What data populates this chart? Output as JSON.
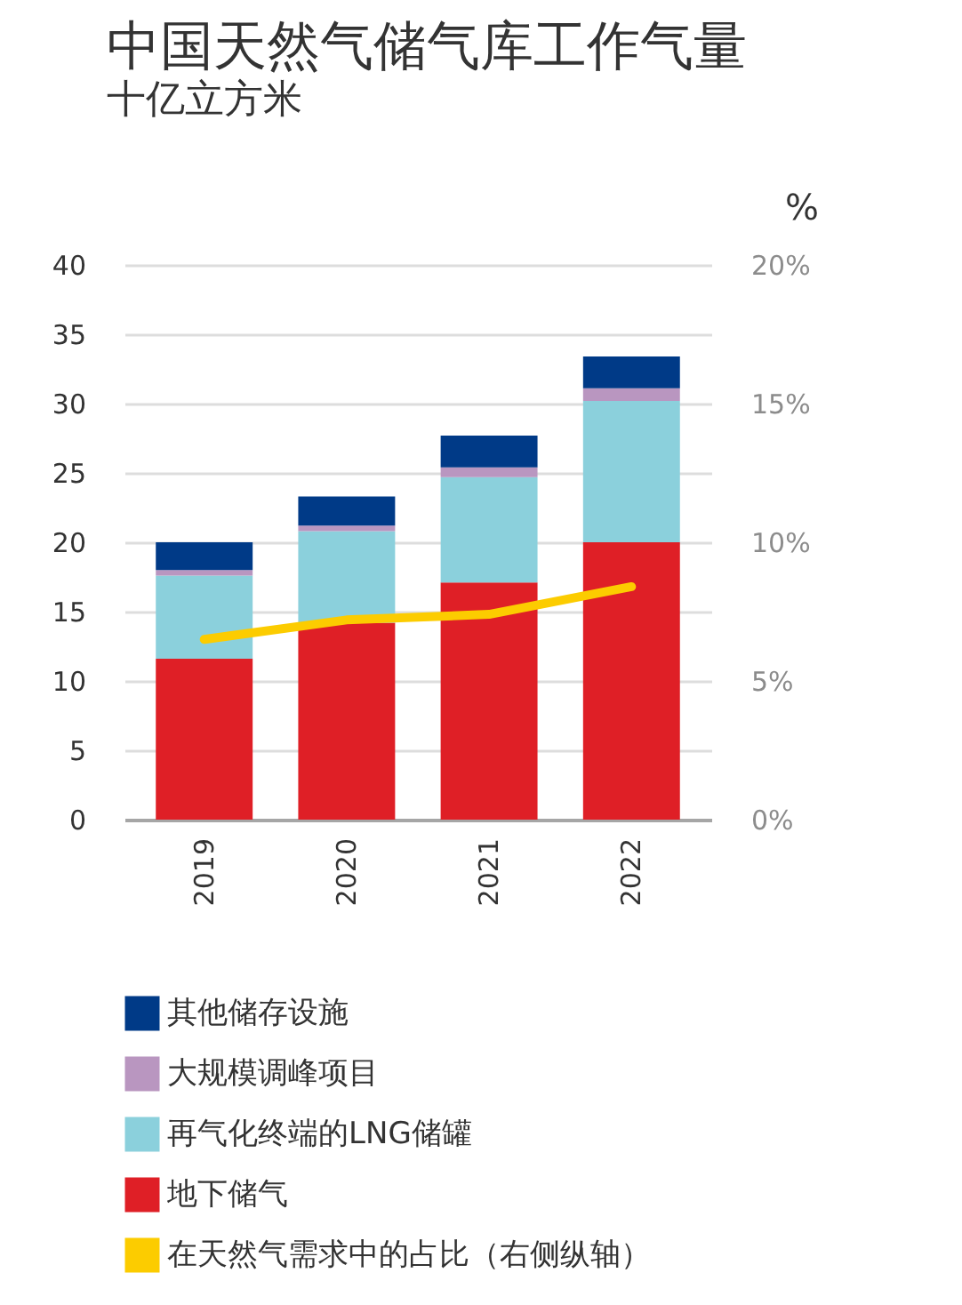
{
  "chart_data": {
    "type": "bar",
    "title": "中国天然气储气库工作气量",
    "subtitle": "十亿立方米",
    "y2label": "%",
    "categories": [
      "2019",
      "2020",
      "2021",
      "2022"
    ],
    "stacked": true,
    "series": [
      {
        "name": "地下储气",
        "color": "#df1f26",
        "values": [
          11.6,
          14.2,
          17.1,
          20.0
        ]
      },
      {
        "name": "再气化终端的LNG储罐",
        "color": "#8bd0dc",
        "values": [
          6.0,
          6.6,
          7.6,
          10.2
        ]
      },
      {
        "name": "大规模调峰项目",
        "color": "#b996c0",
        "values": [
          0.4,
          0.4,
          0.7,
          0.9
        ]
      },
      {
        "name": "其他储存设施",
        "color": "#003a87",
        "values": [
          2.0,
          2.1,
          2.3,
          2.3
        ]
      },
      {
        "name": "在天然气需求中的占比（右侧纵轴）",
        "color": "#fccc00",
        "type": "line",
        "axis": "y2",
        "values": [
          6.5,
          7.2,
          7.4,
          8.4
        ]
      }
    ],
    "ylim": [
      0,
      40
    ],
    "yticks": [
      0,
      5,
      10,
      15,
      20,
      25,
      30,
      35,
      40
    ],
    "y2lim": [
      0,
      20
    ],
    "y2ticks": [
      {
        "value": 0,
        "label": "0%"
      },
      {
        "value": 5,
        "label": "5%"
      },
      {
        "value": 10,
        "label": "10%"
      },
      {
        "value": 15,
        "label": "15%"
      },
      {
        "value": 20,
        "label": "20%"
      }
    ],
    "grid": "y",
    "legend": "bottom"
  }
}
